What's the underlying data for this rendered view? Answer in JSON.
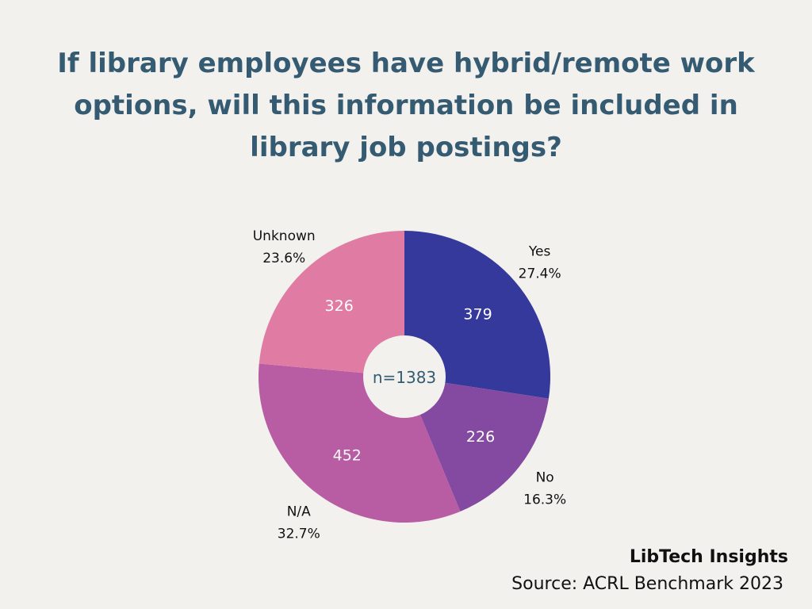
{
  "title": "If library employees have hybrid/remote work options, will this information be included in library job postings?",
  "brand": "LibTech Insights",
  "source": "Source: ACRL Benchmark 2023",
  "chart_data": {
    "type": "pie",
    "center_label": "n=1383",
    "slices": [
      {
        "label": "Yes",
        "value": 379,
        "percent": "27.4%",
        "color": "#34399b"
      },
      {
        "label": "No",
        "value": 226,
        "percent": "16.3%",
        "color": "#8449a0"
      },
      {
        "label": "N/A",
        "value": 452,
        "percent": "32.7%",
        "color": "#b85ca3"
      },
      {
        "label": "Unknown",
        "value": 326,
        "percent": "23.6%",
        "color": "#e07ca3"
      }
    ]
  }
}
